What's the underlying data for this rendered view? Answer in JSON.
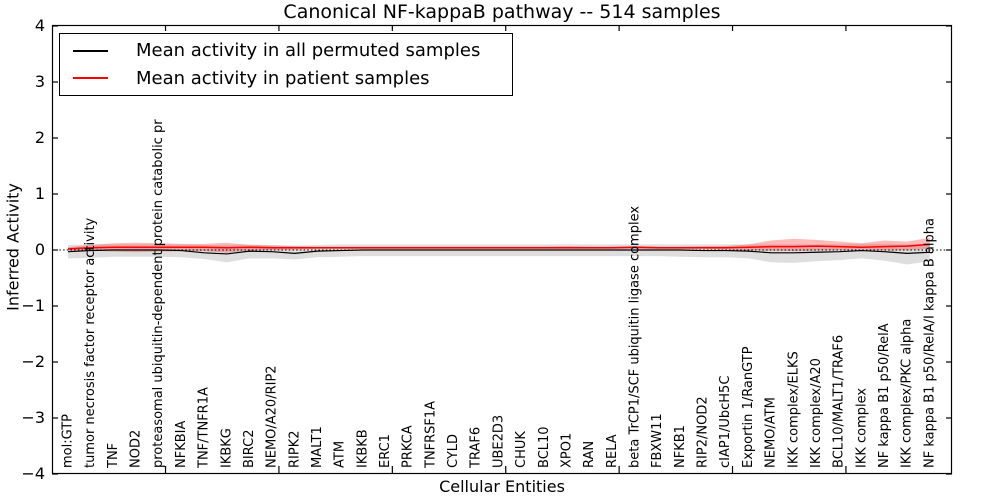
{
  "chart_data": {
    "type": "line",
    "title": "Canonical NF-kappaB pathway -- 514 samples",
    "xlabel": "Cellular Entities",
    "ylabel": "Inferred Activity",
    "ylim": [
      -4,
      4
    ],
    "yticks": [
      4,
      3,
      2,
      1,
      0,
      -1,
      -2,
      -3,
      -4
    ],
    "ytick_labels": [
      "4",
      "3",
      "2",
      "1",
      "0",
      "−1",
      "−2",
      "−3",
      "−4"
    ],
    "grid": false,
    "legend_position": "upper left",
    "zero_reference_line": true,
    "categories": [
      "mol:GTP",
      "tumor necrosis factor receptor activity",
      "TNF",
      "NOD2",
      "proteasomal ubiquitin-dependent protein catabolic pr",
      "NFKBIA",
      "TNF/TNFR1A",
      "IKBKG",
      "BIRC2",
      "NEMO/A20/RIP2",
      "RIPK2",
      "MALT1",
      "ATM",
      "IKBKB",
      "ERC1",
      "PRKCA",
      "TNFRSF1A",
      "CYLD",
      "TRAF6",
      "UBE2D3",
      "CHUK",
      "BCL10",
      "XPO1",
      "RAN",
      "RELA",
      "beta TrCP1/SCF ubiquitin ligase complex",
      "FBXW11",
      "NFKB1",
      "RIP2/NOD2",
      "cIAP1/UbcH5C",
      "Exportin 1/RanGTP",
      "NEMO/ATM",
      "IKK complex/ELKS",
      "IKK complex/A20",
      "BCL10/MALT1/TRAF6",
      "IKK complex",
      "NF kappa B1 p50/RelA",
      "IKK complex/PKC alpha",
      "NF kappa B1 p50/RelA/I kappa B alpha"
    ],
    "series": [
      {
        "name": "Mean activity in all permuted samples",
        "color": "#000000",
        "band_color": "rgba(0,0,0,0.13)",
        "values": [
          -0.03,
          -0.01,
          0,
          0,
          0,
          -0.01,
          -0.05,
          -0.07,
          -0.02,
          -0.03,
          -0.06,
          -0.02,
          -0.01,
          0,
          0,
          0,
          0,
          0,
          0,
          0,
          0,
          0,
          0,
          0,
          0,
          0,
          0,
          0,
          -0.01,
          -0.01,
          -0.02,
          -0.05,
          -0.05,
          -0.04,
          -0.03,
          -0.01,
          -0.03,
          -0.06,
          -0.04
        ],
        "band_upper": [
          0.09,
          0.1,
          0.1,
          0.1,
          0.1,
          0.1,
          0.09,
          0.09,
          0.1,
          0.09,
          0.08,
          0.09,
          0.1,
          0.1,
          0.1,
          0.1,
          0.1,
          0.1,
          0.1,
          0.1,
          0.1,
          0.1,
          0.1,
          0.1,
          0.1,
          0.1,
          0.1,
          0.1,
          0.1,
          0.1,
          0.1,
          0.1,
          0.1,
          0.1,
          0.1,
          0.11,
          0.11,
          0.1,
          0.11
        ],
        "band_lower": [
          -0.15,
          -0.14,
          -0.12,
          -0.12,
          -0.12,
          -0.13,
          -0.16,
          -0.22,
          -0.15,
          -0.15,
          -0.17,
          -0.13,
          -0.12,
          -0.11,
          -0.11,
          -0.11,
          -0.11,
          -0.11,
          -0.11,
          -0.11,
          -0.11,
          -0.11,
          -0.11,
          -0.11,
          -0.11,
          -0.11,
          -0.11,
          -0.12,
          -0.13,
          -0.13,
          -0.15,
          -0.22,
          -0.23,
          -0.2,
          -0.18,
          -0.15,
          -0.19,
          -0.26,
          -0.2
        ]
      },
      {
        "name": "Mean activity in patient samples",
        "color": "#ff0000",
        "band_color": "rgba(255,0,0,0.27)",
        "values": [
          0.02,
          0.04,
          0.05,
          0.05,
          0.05,
          0.05,
          0.05,
          0.04,
          0.05,
          0.04,
          0.04,
          0.04,
          0.04,
          0.04,
          0.04,
          0.04,
          0.04,
          0.04,
          0.04,
          0.04,
          0.04,
          0.04,
          0.04,
          0.04,
          0.04,
          0.05,
          0.04,
          0.04,
          0.04,
          0.04,
          0.05,
          0.06,
          0.06,
          0.07,
          0.06,
          0.05,
          0.06,
          0.07,
          0.1
        ],
        "band_upper": [
          0.05,
          0.09,
          0.12,
          0.13,
          0.12,
          0.11,
          0.11,
          0.13,
          0.09,
          0.08,
          0.07,
          0.06,
          0.06,
          0.06,
          0.06,
          0.06,
          0.06,
          0.06,
          0.06,
          0.06,
          0.06,
          0.06,
          0.07,
          0.06,
          0.06,
          0.07,
          0.06,
          0.06,
          0.07,
          0.07,
          0.1,
          0.17,
          0.2,
          0.18,
          0.15,
          0.12,
          0.17,
          0.15,
          0.22
        ],
        "band_lower": [
          -0.01,
          -0.01,
          -0.03,
          -0.04,
          -0.03,
          -0.02,
          -0.02,
          -0.05,
          0,
          0,
          0.01,
          0.02,
          0.02,
          0.02,
          0.02,
          0.02,
          0.02,
          0.02,
          0.02,
          0.02,
          0.02,
          0.02,
          0.02,
          0.02,
          0.02,
          0.02,
          0.02,
          0.02,
          0.02,
          0.01,
          0,
          -0.01,
          -0.02,
          -0.01,
          0,
          0.01,
          -0.01,
          0,
          0.02
        ]
      }
    ]
  }
}
